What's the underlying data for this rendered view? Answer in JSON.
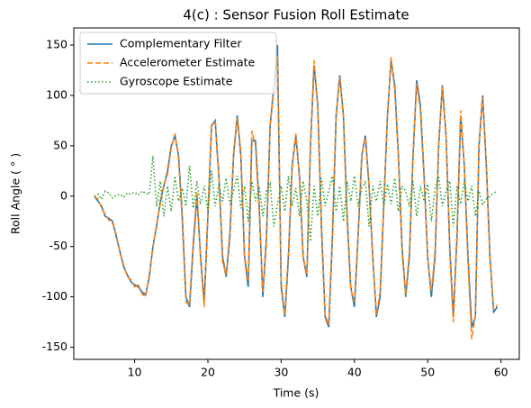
{
  "chart_data": {
    "type": "line",
    "title": "4(c) : Sensor Fusion Roll Estimate",
    "xlabel": "Time (s)",
    "ylabel": "Roll Angle ( ° )",
    "xlim": [
      1.7,
      62.5
    ],
    "ylim": [
      -162,
      167
    ],
    "xticks": [
      10,
      20,
      30,
      40,
      50,
      60
    ],
    "yticks": [
      -150,
      -100,
      -50,
      0,
      50,
      100,
      150
    ],
    "legend": "upper left",
    "x": [
      4.5,
      5,
      5.5,
      6,
      6.5,
      7,
      7.5,
      8,
      8.5,
      9,
      9.5,
      10,
      10.5,
      11,
      11.5,
      12,
      12.5,
      13,
      13.5,
      14,
      14.5,
      15,
      15.5,
      16,
      16.5,
      17,
      17.5,
      18,
      18.5,
      19,
      19.5,
      20,
      20.5,
      21,
      21.5,
      22,
      22.5,
      23,
      23.5,
      24,
      24.5,
      25,
      25.5,
      26,
      26.5,
      27,
      27.5,
      28,
      28.5,
      29,
      29.5,
      30,
      30.5,
      31,
      31.5,
      32,
      32.5,
      33,
      33.5,
      34,
      34.5,
      35,
      35.5,
      36,
      36.5,
      37,
      37.5,
      38,
      38.5,
      39,
      39.5,
      40,
      40.5,
      41,
      41.5,
      42,
      42.5,
      43,
      43.5,
      44,
      44.5,
      45,
      45.5,
      46,
      46.5,
      47,
      47.5,
      48,
      48.5,
      49,
      49.5,
      50,
      50.5,
      51,
      51.5,
      52,
      52.5,
      53,
      53.5,
      54,
      54.5,
      55,
      55.5,
      56,
      56.5,
      57,
      57.5,
      58,
      58.5,
      59,
      59.5
    ],
    "series": [
      {
        "name": "Complementary Filter",
        "color": "#1f77b4",
        "linestyle": "solid",
        "values": [
          0,
          -5,
          -10,
          -20,
          -22,
          -25,
          -40,
          -55,
          -70,
          -78,
          -85,
          -88,
          -90,
          -95,
          -98,
          -80,
          -50,
          -30,
          -5,
          10,
          25,
          50,
          60,
          40,
          -20,
          -100,
          -110,
          -50,
          0,
          -60,
          -105,
          -20,
          70,
          75,
          20,
          -60,
          -80,
          -40,
          40,
          80,
          40,
          -60,
          -90,
          55,
          55,
          -10,
          -100,
          -40,
          70,
          110,
          150,
          -90,
          -120,
          -60,
          30,
          60,
          20,
          -60,
          -80,
          50,
          130,
          90,
          -30,
          -120,
          -130,
          -40,
          80,
          120,
          80,
          -20,
          -90,
          -110,
          -40,
          40,
          60,
          10,
          -60,
          -120,
          -100,
          -10,
          80,
          135,
          110,
          40,
          -50,
          -100,
          -60,
          40,
          115,
          90,
          20,
          -60,
          -100,
          -60,
          50,
          110,
          60,
          -50,
          -120,
          -40,
          80,
          30,
          -60,
          -130,
          -120,
          50,
          100,
          30,
          -60,
          -115,
          -110
        ]
      },
      {
        "name": "Accelerometer Estimate",
        "color": "#ff7f0e",
        "linestyle": "dashed",
        "values": [
          0,
          -3,
          -12,
          -18,
          -24,
          -27,
          -38,
          -57,
          -68,
          -80,
          -83,
          -90,
          -88,
          -97,
          -100,
          -78,
          -52,
          -28,
          -8,
          12,
          22,
          48,
          62,
          38,
          -25,
          -105,
          -108,
          -45,
          5,
          -62,
          -110,
          -15,
          72,
          73,
          18,
          -65,
          -78,
          -35,
          42,
          78,
          45,
          -58,
          -85,
          65,
          50,
          -15,
          -95,
          -45,
          72,
          105,
          140,
          -85,
          -118,
          -55,
          28,
          62,
          18,
          -62,
          -78,
          52,
          135,
          88,
          -35,
          -118,
          -128,
          -35,
          82,
          118,
          78,
          -25,
          -92,
          -105,
          -38,
          42,
          58,
          8,
          -62,
          -118,
          -95,
          -8,
          78,
          138,
          105,
          38,
          -55,
          -98,
          -55,
          42,
          112,
          85,
          18,
          -62,
          -95,
          -55,
          52,
          108,
          62,
          -55,
          -125,
          -35,
          85,
          28,
          -65,
          -142,
          -118,
          52,
          98,
          28,
          -62,
          -112,
          -108
        ]
      },
      {
        "name": "Gyroscope Estimate",
        "color": "#2ca02c",
        "linestyle": "dotted",
        "values": [
          0,
          2,
          -3,
          5,
          3,
          -2,
          1,
          2,
          -1,
          3,
          2,
          4,
          1,
          5,
          3,
          2,
          40,
          -10,
          15,
          -20,
          10,
          -15,
          20,
          -5,
          8,
          -10,
          30,
          -12,
          15,
          -8,
          10,
          -15,
          25,
          -10,
          12,
          -5,
          18,
          -8,
          5,
          20,
          -12,
          10,
          -25,
          15,
          -5,
          10,
          -20,
          5,
          12,
          -30,
          -8,
          10,
          -15,
          20,
          -10,
          8,
          -20,
          15,
          -5,
          -45,
          10,
          -20,
          18,
          -10,
          5,
          20,
          -15,
          10,
          -25,
          15,
          -5,
          20,
          -10,
          8,
          15,
          -30,
          10,
          -5,
          15,
          -10,
          12,
          -8,
          18,
          -15,
          10,
          5,
          -10,
          15,
          -20,
          10,
          -5,
          12,
          -25,
          8,
          20,
          -10,
          5,
          15,
          -30,
          10,
          -8,
          15,
          -5,
          10,
          -20,
          5,
          -8,
          -3,
          0,
          3,
          5
        ]
      }
    ]
  }
}
